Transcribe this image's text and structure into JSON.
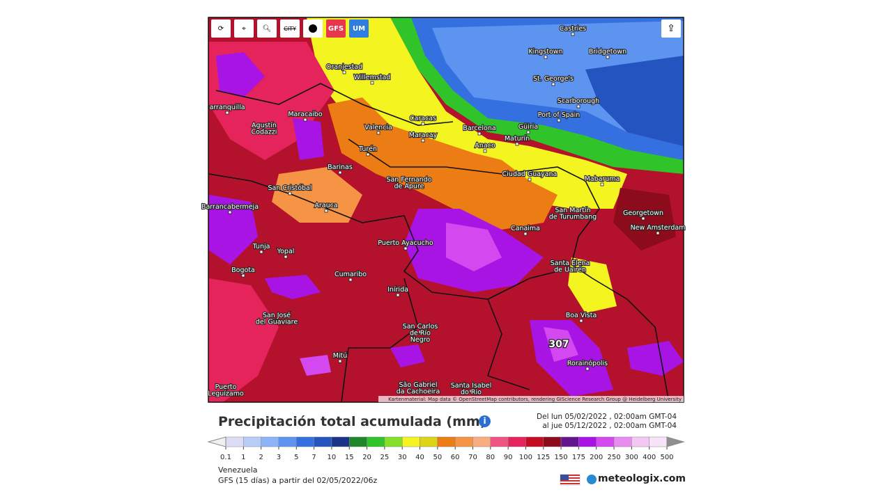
{
  "toolbar": {
    "city": "CITY",
    "gfs": "GFS",
    "um": "UM"
  },
  "map": {
    "cities": [
      [
        "Castries"
      ],
      [
        "Kingstown"
      ],
      [
        "Bridgetown"
      ],
      [
        "Oranjestad"
      ],
      [
        "Willemstad"
      ],
      [
        "St. George's"
      ],
      [
        "Scarborough"
      ],
      [
        "arranquilla"
      ],
      [
        "Maracaibo"
      ],
      [
        "Port of Spain"
      ],
      [
        "Caracas"
      ],
      [
        "Agustín",
        "Codazzi"
      ],
      [
        "Valencia"
      ],
      [
        "Barcelona"
      ],
      [
        "Güiria"
      ],
      [
        "Maracay"
      ],
      [
        "Maturín"
      ],
      [
        "Anaco"
      ],
      [
        "Turén"
      ],
      [
        "Barinas"
      ],
      [
        "Ciudad Guayana"
      ],
      [
        "Mabaruma"
      ],
      [
        "San Fernando",
        "de Apure"
      ],
      [
        "San Cristóbal"
      ],
      [
        "Arauca"
      ],
      [
        "Barrancabermeja"
      ],
      [
        "San Martín",
        "de Turumbang"
      ],
      [
        "Georgetown"
      ],
      [
        "New Amsterdam"
      ],
      [
        "Canaima"
      ],
      [
        "Puerto Ayacucho"
      ],
      [
        "Tunja"
      ],
      [
        "Yopal"
      ],
      [
        "Santa Elena",
        "de Uairén"
      ],
      [
        "Bogota"
      ],
      [
        "Cumaribo"
      ],
      [
        "Inírida"
      ],
      [
        "San José",
        "del Guaviare"
      ],
      [
        "Boa Vista"
      ],
      [
        "San Carlos",
        "de Río",
        "Negro"
      ],
      [
        "Mitú"
      ],
      [
        "Rorainópolis"
      ],
      [
        "São Gabriel",
        "da Cachoeira"
      ],
      [
        "Santa Isabel",
        "do Rio"
      ],
      [
        "Puerto",
        "Leguízamo"
      ]
    ],
    "max_label": "307",
    "attribution": "Kartenmaterial: Map data © OpenStreetMap contributors, rendering GIScience Research Group @ Heidelberg University"
  },
  "title": "Precipitación total acumulada (mm)",
  "period": {
    "from": "Del lun 05/02/2022 , 02:00am GMT-04",
    "to": "al jue 05/12/2022 , 02:00am GMT-04"
  },
  "legend": {
    "values": [
      0.1,
      1,
      2,
      3,
      5,
      7,
      10,
      15,
      20,
      25,
      30,
      40,
      50,
      60,
      70,
      80,
      90,
      100,
      125,
      150,
      175,
      200,
      250,
      300,
      400,
      500
    ],
    "colors": [
      "#dcdcf4",
      "#b8ccf8",
      "#8cb4f8",
      "#5c94f0",
      "#3470e0",
      "#2454c0",
      "#1c3488",
      "#20862a",
      "#30c42a",
      "#86e02a",
      "#f4f420",
      "#dcd414",
      "#ec7c14",
      "#f49444",
      "#f8ac80",
      "#f05482",
      "#e4245a",
      "#c40c22",
      "#8c0c1c",
      "#64148c",
      "#a814e4",
      "#d448f0",
      "#e88cf0",
      "#f4c8f4",
      "#f8e4f8"
    ]
  },
  "footer": {
    "region": "Venezuela",
    "model": "GFS (15 días) a partir del 02/05/2022/06z",
    "brand": "meteologix.com"
  }
}
